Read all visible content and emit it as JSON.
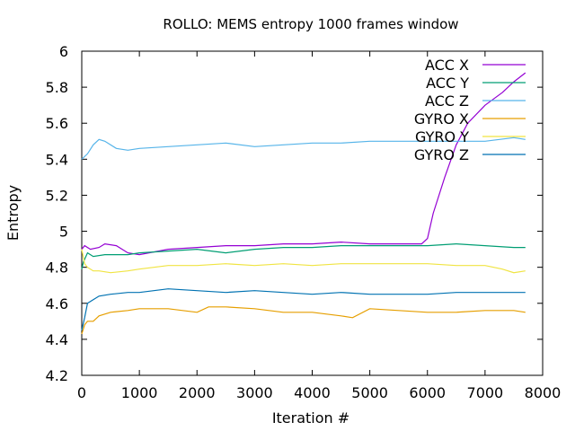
{
  "chart_data": {
    "type": "line",
    "title": "ROLLO: MEMS entropy 1000 frames window",
    "xlabel": "Iteration #",
    "ylabel": "Entropy",
    "xlim": [
      0,
      8000
    ],
    "ylim": [
      4.2,
      6.0
    ],
    "xticks": [
      "0",
      "1000",
      "2000",
      "3000",
      "4000",
      "5000",
      "6000",
      "7000",
      "8000"
    ],
    "yticks": [
      "4.2",
      "4.4",
      "4.6",
      "4.8",
      "5",
      "5.2",
      "5.4",
      "5.6",
      "5.8",
      "6"
    ],
    "grid": false,
    "legend_position": "top-right",
    "series": [
      {
        "name": "ACC X",
        "color": "#9400d3",
        "x": [
          0,
          50,
          150,
          300,
          400,
          600,
          800,
          1000,
          1500,
          2000,
          2500,
          3000,
          3500,
          4000,
          4500,
          5000,
          5500,
          5900,
          6000,
          6100,
          6300,
          6500,
          6700,
          7000,
          7300,
          7500,
          7700
        ],
        "y": [
          4.9,
          4.92,
          4.9,
          4.91,
          4.93,
          4.92,
          4.88,
          4.87,
          4.9,
          4.91,
          4.92,
          4.92,
          4.93,
          4.93,
          4.94,
          4.93,
          4.93,
          4.93,
          4.96,
          5.1,
          5.3,
          5.48,
          5.6,
          5.7,
          5.77,
          5.83,
          5.88
        ]
      },
      {
        "name": "ACC Y",
        "color": "#009e73",
        "x": [
          0,
          30,
          100,
          200,
          400,
          800,
          1000,
          1500,
          2000,
          2500,
          3000,
          3500,
          4000,
          4500,
          5000,
          5500,
          6000,
          6500,
          7000,
          7500,
          7700
        ],
        "y": [
          4.79,
          4.83,
          4.88,
          4.86,
          4.87,
          4.87,
          4.88,
          4.89,
          4.9,
          4.88,
          4.9,
          4.91,
          4.91,
          4.92,
          4.92,
          4.92,
          4.92,
          4.93,
          4.92,
          4.91,
          4.91
        ]
      },
      {
        "name": "ACC Z",
        "color": "#56b4e9",
        "x": [
          0,
          100,
          200,
          300,
          400,
          600,
          800,
          1000,
          1500,
          2000,
          2500,
          3000,
          3500,
          4000,
          4500,
          5000,
          5500,
          6000,
          6500,
          7000,
          7500,
          7700
        ],
        "y": [
          5.4,
          5.43,
          5.48,
          5.51,
          5.5,
          5.46,
          5.45,
          5.46,
          5.47,
          5.48,
          5.49,
          5.47,
          5.48,
          5.49,
          5.49,
          5.5,
          5.5,
          5.5,
          5.5,
          5.5,
          5.52,
          5.51
        ]
      },
      {
        "name": "GYRO X",
        "color": "#e69f00",
        "x": [
          0,
          50,
          100,
          200,
          300,
          500,
          800,
          1000,
          1500,
          2000,
          2200,
          2500,
          3000,
          3500,
          4000,
          4500,
          4700,
          5000,
          5500,
          6000,
          6500,
          7000,
          7500,
          7700
        ],
        "y": [
          4.43,
          4.48,
          4.5,
          4.5,
          4.53,
          4.55,
          4.56,
          4.57,
          4.57,
          4.55,
          4.58,
          4.58,
          4.57,
          4.55,
          4.55,
          4.53,
          4.52,
          4.57,
          4.56,
          4.55,
          4.55,
          4.56,
          4.56,
          4.55
        ]
      },
      {
        "name": "GYRO Y",
        "color": "#f0e442",
        "x": [
          0,
          50,
          100,
          200,
          300,
          500,
          800,
          1000,
          1500,
          2000,
          2500,
          3000,
          3500,
          4000,
          4500,
          5000,
          5500,
          6000,
          6500,
          7000,
          7300,
          7500,
          7700
        ],
        "y": [
          4.9,
          4.82,
          4.8,
          4.78,
          4.78,
          4.77,
          4.78,
          4.79,
          4.81,
          4.81,
          4.82,
          4.81,
          4.82,
          4.81,
          4.82,
          4.82,
          4.82,
          4.82,
          4.81,
          4.81,
          4.79,
          4.77,
          4.78
        ]
      },
      {
        "name": "GYRO Z",
        "color": "#0072b2",
        "x": [
          0,
          50,
          100,
          200,
          300,
          500,
          800,
          1000,
          1500,
          2000,
          2500,
          3000,
          3500,
          4000,
          4500,
          5000,
          5500,
          6000,
          6500,
          7000,
          7500,
          7700
        ],
        "y": [
          4.45,
          4.52,
          4.6,
          4.62,
          4.64,
          4.65,
          4.66,
          4.66,
          4.68,
          4.67,
          4.66,
          4.67,
          4.66,
          4.65,
          4.66,
          4.65,
          4.65,
          4.65,
          4.66,
          4.66,
          4.66,
          4.66
        ]
      }
    ]
  }
}
